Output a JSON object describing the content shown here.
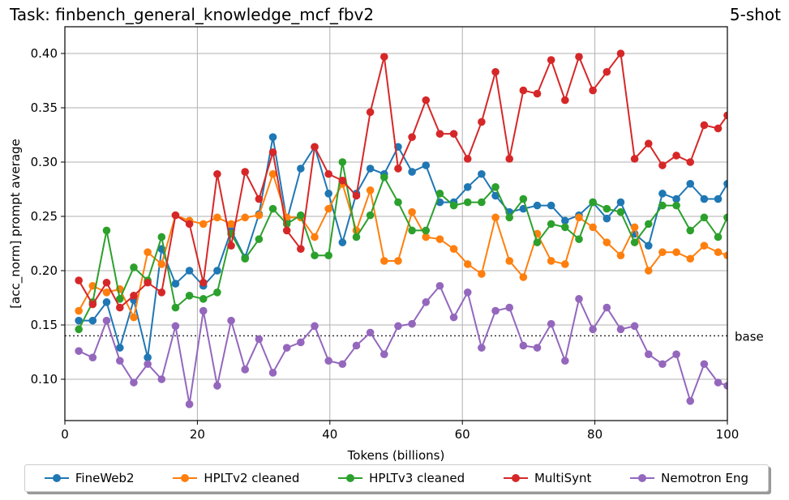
{
  "header": {
    "title": "Task: finbench_general_knowledge_mcf_fbv2",
    "shot": "5-shot"
  },
  "chart_data": {
    "type": "line",
    "title": "Task: finbench_general_knowledge_mcf_fbv2",
    "subtitle": "5-shot",
    "xlabel": "Tokens (billions)",
    "ylabel": "[acc_norm] prompt average",
    "xlim": [
      0,
      100
    ],
    "ylim": [
      0.06,
      0.42
    ],
    "xticks": [
      0,
      20,
      40,
      60,
      80,
      100
    ],
    "yticks": [
      0.1,
      0.15,
      0.2,
      0.25,
      0.3,
      0.35,
      0.4
    ],
    "grid": true,
    "legend_position": "bottom",
    "baseline": {
      "label": "base",
      "value": 0.14
    },
    "x": [
      2.1,
      4.2,
      6.3,
      8.3,
      10.4,
      12.5,
      14.6,
      16.7,
      18.8,
      20.9,
      23.0,
      25.1,
      27.2,
      29.3,
      31.4,
      33.5,
      35.6,
      37.7,
      39.8,
      41.9,
      44.0,
      46.1,
      48.2,
      50.3,
      52.4,
      54.5,
      56.6,
      58.7,
      60.8,
      62.9,
      65.0,
      67.1,
      69.2,
      71.3,
      73.4,
      75.5,
      77.6,
      79.7,
      81.8,
      83.9,
      86.0,
      88.1,
      90.2,
      92.3,
      94.4,
      96.5,
      98.6,
      100.0
    ],
    "series": [
      {
        "name": "FineWeb2",
        "color": "#1f77b4",
        "values": [
          0.154,
          0.154,
          0.171,
          0.129,
          0.173,
          0.12,
          0.22,
          0.188,
          0.2,
          0.186,
          0.2,
          0.237,
          0.212,
          0.252,
          0.323,
          0.246,
          0.294,
          0.314,
          0.271,
          0.226,
          0.271,
          0.294,
          0.289,
          0.314,
          0.291,
          0.297,
          0.263,
          0.263,
          0.277,
          0.289,
          0.269,
          0.254,
          0.257,
          0.26,
          0.26,
          0.246,
          0.251,
          0.263,
          0.248,
          0.263,
          0.234,
          0.223,
          0.271,
          0.266,
          0.28,
          0.266,
          0.266,
          0.28
        ]
      },
      {
        "name": "HPLTv2 cleaned",
        "color": "#ff7f0e",
        "values": [
          0.163,
          0.186,
          0.18,
          0.183,
          0.157,
          0.217,
          0.206,
          0.251,
          0.246,
          0.243,
          0.249,
          0.243,
          0.249,
          0.251,
          0.289,
          0.249,
          0.249,
          0.231,
          0.257,
          0.28,
          0.237,
          0.274,
          0.209,
          0.209,
          0.254,
          0.231,
          0.229,
          0.22,
          0.206,
          0.197,
          0.249,
          0.209,
          0.194,
          0.234,
          0.209,
          0.206,
          0.249,
          0.24,
          0.226,
          0.214,
          0.24,
          0.2,
          0.217,
          0.217,
          0.211,
          0.223,
          0.217,
          0.214
        ]
      },
      {
        "name": "HPLTv3 cleaned",
        "color": "#2ca02c",
        "values": [
          0.146,
          0.171,
          0.237,
          0.174,
          0.203,
          0.191,
          0.231,
          0.166,
          0.177,
          0.174,
          0.18,
          0.234,
          0.211,
          0.229,
          0.257,
          0.243,
          0.251,
          0.214,
          0.214,
          0.3,
          0.231,
          0.251,
          0.286,
          0.263,
          0.237,
          0.237,
          0.271,
          0.26,
          0.263,
          0.263,
          0.277,
          0.249,
          0.266,
          0.226,
          0.243,
          0.24,
          0.229,
          0.263,
          0.257,
          0.254,
          0.226,
          0.243,
          0.26,
          0.26,
          0.237,
          0.249,
          0.231,
          0.249
        ]
      },
      {
        "name": "MultiSynt",
        "color": "#d62728",
        "values": [
          0.191,
          0.169,
          0.189,
          0.166,
          0.177,
          0.189,
          0.18,
          0.251,
          0.243,
          0.189,
          0.289,
          0.223,
          0.291,
          0.266,
          0.309,
          0.237,
          0.22,
          0.314,
          0.289,
          0.283,
          0.269,
          0.346,
          0.397,
          0.294,
          0.323,
          0.357,
          0.326,
          0.326,
          0.303,
          0.337,
          0.383,
          0.303,
          0.366,
          0.363,
          0.394,
          0.357,
          0.397,
          0.366,
          0.383,
          0.4,
          0.303,
          0.317,
          0.297,
          0.306,
          0.3,
          0.334,
          0.331,
          0.343
        ]
      },
      {
        "name": "Nemotron Eng",
        "color": "#9467bd",
        "values": [
          0.126,
          0.12,
          0.154,
          0.117,
          0.097,
          0.114,
          0.1,
          0.149,
          0.077,
          0.163,
          0.094,
          0.154,
          0.109,
          0.137,
          0.106,
          0.129,
          0.134,
          0.149,
          0.117,
          0.114,
          0.131,
          0.143,
          0.123,
          0.149,
          0.151,
          0.171,
          0.186,
          0.157,
          0.18,
          0.129,
          0.163,
          0.166,
          0.131,
          0.129,
          0.151,
          0.117,
          0.174,
          0.146,
          0.166,
          0.146,
          0.149,
          0.123,
          0.114,
          0.123,
          0.08,
          0.114,
          0.097,
          0.094
        ]
      }
    ]
  }
}
